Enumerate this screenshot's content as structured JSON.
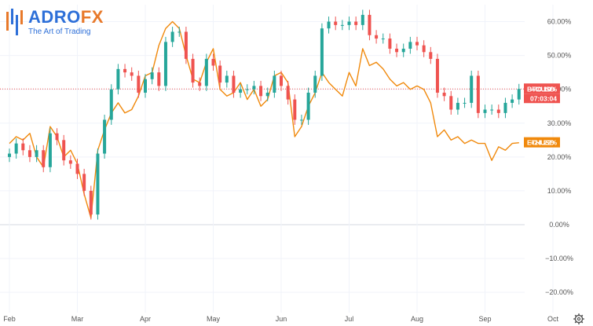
{
  "logo": {
    "name_main": "ADRO",
    "name_accent": "FX",
    "tagline": "The Art of Trading"
  },
  "colors": {
    "background": "#ffffff",
    "btc_up": "#26a69a",
    "btc_down": "#ef5350",
    "btc_tag": "#ef5350",
    "eth_line": "#f0890c",
    "eth_tag": "#f0890c",
    "logo_blue": "#2d6fd8",
    "logo_orange": "#e8792a",
    "grid": "#f0f3fa",
    "reference_line": "#ef5350"
  },
  "axis": {
    "y_ticks": [
      "60.00%",
      "50.00%",
      "40.00%",
      "30.00%",
      "20.00%",
      "10.00%",
      "0.00%",
      "−10.00%",
      "−20.00%"
    ],
    "y_tick_values": [
      60,
      50,
      40,
      30,
      20,
      10,
      0,
      -10,
      -20
    ],
    "x_ticks": [
      "Feb",
      "Mar",
      "Apr",
      "May",
      "Jun",
      "Jul",
      "Aug",
      "Sep",
      "Oct"
    ]
  },
  "icons": {
    "settings": "gear-icon"
  },
  "chart_data": {
    "type": "line",
    "ylim": [
      -26,
      65
    ],
    "grid": true,
    "x_unit": "month-index from Feb (0 = Feb, 1 = Mar, ... 8 = Oct)",
    "xlim": [
      0,
      8.2
    ],
    "x_ticks": [
      "Feb",
      "Mar",
      "Apr",
      "May",
      "Jun",
      "Jul",
      "Aug",
      "Sep",
      "Oct"
    ],
    "series": [
      {
        "name": "BTCUSD",
        "label": "BTCUSD",
        "last_value_label": "+40.10%",
        "countdown": "07:03:04",
        "last_value": 40.1,
        "style": "candles",
        "points": [
          [
            0.0,
            21
          ],
          [
            0.1,
            24
          ],
          [
            0.2,
            22
          ],
          [
            0.3,
            20
          ],
          [
            0.4,
            22
          ],
          [
            0.5,
            17
          ],
          [
            0.6,
            27
          ],
          [
            0.7,
            25
          ],
          [
            0.8,
            19
          ],
          [
            0.9,
            18
          ],
          [
            1.0,
            15
          ],
          [
            1.1,
            10
          ],
          [
            1.2,
            3
          ],
          [
            1.3,
            21
          ],
          [
            1.4,
            31
          ],
          [
            1.5,
            40
          ],
          [
            1.6,
            46
          ],
          [
            1.7,
            45
          ],
          [
            1.8,
            44
          ],
          [
            1.9,
            39
          ],
          [
            2.0,
            43
          ],
          [
            2.1,
            45
          ],
          [
            2.2,
            41
          ],
          [
            2.3,
            54
          ],
          [
            2.4,
            57
          ],
          [
            2.5,
            57
          ],
          [
            2.6,
            49
          ],
          [
            2.7,
            42
          ],
          [
            2.8,
            41
          ],
          [
            2.9,
            49
          ],
          [
            3.0,
            47
          ],
          [
            3.1,
            42
          ],
          [
            3.2,
            44
          ],
          [
            3.3,
            39
          ],
          [
            3.4,
            40
          ],
          [
            3.5,
            40
          ],
          [
            3.6,
            41
          ],
          [
            3.7,
            38
          ],
          [
            3.8,
            39
          ],
          [
            3.9,
            44
          ],
          [
            4.0,
            41
          ],
          [
            4.1,
            37
          ],
          [
            4.2,
            31
          ],
          [
            4.3,
            31
          ],
          [
            4.4,
            39
          ],
          [
            4.5,
            44
          ],
          [
            4.6,
            58
          ],
          [
            4.7,
            60
          ],
          [
            4.8,
            59
          ],
          [
            4.9,
            59
          ],
          [
            5.0,
            60
          ],
          [
            5.1,
            59
          ],
          [
            5.2,
            62
          ],
          [
            5.3,
            56
          ],
          [
            5.4,
            55
          ],
          [
            5.5,
            55
          ],
          [
            5.6,
            52
          ],
          [
            5.7,
            51
          ],
          [
            5.8,
            52
          ],
          [
            5.9,
            54
          ],
          [
            6.0,
            53
          ],
          [
            6.1,
            51
          ],
          [
            6.2,
            49
          ],
          [
            6.3,
            39
          ],
          [
            6.4,
            38
          ],
          [
            6.5,
            34
          ],
          [
            6.6,
            36
          ],
          [
            6.7,
            36
          ],
          [
            6.8,
            44
          ],
          [
            6.9,
            33
          ],
          [
            7.0,
            34
          ],
          [
            7.1,
            34
          ],
          [
            7.2,
            33
          ],
          [
            7.3,
            36
          ],
          [
            7.4,
            37
          ],
          [
            7.5,
            40.1
          ]
        ]
      },
      {
        "name": "ETHUSD",
        "label": "ETHUSD",
        "last_value_label": "+24.22%",
        "last_value": 24.22,
        "style": "line",
        "points": [
          [
            0.0,
            24
          ],
          [
            0.1,
            26
          ],
          [
            0.2,
            25
          ],
          [
            0.3,
            27
          ],
          [
            0.4,
            20
          ],
          [
            0.5,
            17
          ],
          [
            0.6,
            29
          ],
          [
            0.7,
            26
          ],
          [
            0.8,
            20
          ],
          [
            0.9,
            22
          ],
          [
            1.0,
            18
          ],
          [
            1.1,
            9
          ],
          [
            1.2,
            2
          ],
          [
            1.3,
            22
          ],
          [
            1.4,
            28
          ],
          [
            1.5,
            33
          ],
          [
            1.6,
            36
          ],
          [
            1.7,
            33
          ],
          [
            1.8,
            34
          ],
          [
            1.9,
            38
          ],
          [
            2.0,
            44
          ],
          [
            2.1,
            45
          ],
          [
            2.2,
            53
          ],
          [
            2.3,
            58
          ],
          [
            2.4,
            60
          ],
          [
            2.5,
            58
          ],
          [
            2.6,
            50
          ],
          [
            2.7,
            43
          ],
          [
            2.8,
            42
          ],
          [
            2.9,
            48
          ],
          [
            3.0,
            52
          ],
          [
            3.1,
            40
          ],
          [
            3.2,
            38
          ],
          [
            3.3,
            39
          ],
          [
            3.4,
            42
          ],
          [
            3.5,
            37
          ],
          [
            3.6,
            40
          ],
          [
            3.7,
            35
          ],
          [
            3.8,
            37
          ],
          [
            3.9,
            44
          ],
          [
            4.0,
            45
          ],
          [
            4.1,
            42
          ],
          [
            4.2,
            26
          ],
          [
            4.3,
            29
          ],
          [
            4.4,
            35
          ],
          [
            4.5,
            39
          ],
          [
            4.6,
            45
          ],
          [
            4.7,
            42
          ],
          [
            4.8,
            40
          ],
          [
            4.9,
            38
          ],
          [
            5.0,
            45
          ],
          [
            5.1,
            41
          ],
          [
            5.2,
            52
          ],
          [
            5.3,
            47
          ],
          [
            5.4,
            48
          ],
          [
            5.5,
            46
          ],
          [
            5.6,
            43
          ],
          [
            5.7,
            41
          ],
          [
            5.8,
            42
          ],
          [
            5.9,
            40
          ],
          [
            6.0,
            41
          ],
          [
            6.1,
            40
          ],
          [
            6.2,
            36
          ],
          [
            6.3,
            26
          ],
          [
            6.4,
            28
          ],
          [
            6.5,
            25
          ],
          [
            6.6,
            26
          ],
          [
            6.7,
            24
          ],
          [
            6.8,
            25
          ],
          [
            6.9,
            24
          ],
          [
            7.0,
            24
          ],
          [
            7.1,
            19
          ],
          [
            7.2,
            23
          ],
          [
            7.3,
            22
          ],
          [
            7.4,
            24
          ],
          [
            7.5,
            24.22
          ]
        ]
      }
    ]
  }
}
